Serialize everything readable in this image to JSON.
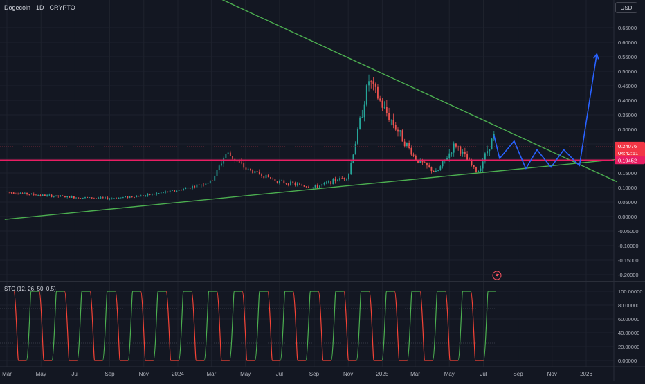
{
  "header": {
    "title": "Dogecoin · 1D · CRYPTO"
  },
  "currency": "USD",
  "colors": {
    "background": "#131722",
    "grid": "#1e222d",
    "up": "#26a69a",
    "down": "#ef5350",
    "trendline": "#4caf50",
    "projection": "#2962ff",
    "support": "#e91e63",
    "stc_up": "#4caf50",
    "stc_down": "#f44336"
  },
  "price_labels": {
    "current_price": "0.24076",
    "countdown": "04:42:51",
    "support_price": "0.19452"
  },
  "indicator": {
    "label": "STC (12, 26, 50, 0.5)"
  },
  "chart_data": [
    {
      "type": "line",
      "title": "Dogecoin · 1D · CRYPTO",
      "xlabel": "",
      "ylabel": "",
      "x_ticks": [
        "Mar",
        "May",
        "Jul",
        "Sep",
        "Nov",
        "2024",
        "Mar",
        "May",
        "Jul",
        "Sep",
        "Nov",
        "2025",
        "Mar",
        "May",
        "Jul",
        "Sep",
        "Nov",
        "2026"
      ],
      "y_ticks": [
        "0.65000",
        "0.60000",
        "0.55000",
        "0.50000",
        "0.45000",
        "0.40000",
        "0.35000",
        "0.30000",
        "0.25000",
        "0.20000",
        "0.15000",
        "0.10000",
        "0.05000",
        "0.00000",
        "-0.05000",
        "-0.10000",
        "-0.15000",
        "-0.20000"
      ],
      "ylim": [
        -0.225,
        0.69
      ],
      "series": [
        {
          "x": [
            "2023-03-01",
            "2023-05-01",
            "2023-07-01",
            "2023-09-01",
            "2023-11-01",
            "2024-01-01",
            "2024-03-01",
            "2024-03-28",
            "2024-05-01",
            "2024-07-01",
            "2024-09-01",
            "2024-11-01",
            "2024-12-08",
            "2025-01-01",
            "2025-03-01",
            "2025-04-08",
            "2025-05-12",
            "2025-06-20",
            "2025-07-20"
          ],
          "values": [
            0.085,
            0.073,
            0.066,
            0.062,
            0.072,
            0.09,
            0.12,
            0.22,
            0.165,
            0.12,
            0.1,
            0.14,
            0.47,
            0.38,
            0.2,
            0.15,
            0.25,
            0.15,
            0.28
          ]
        }
      ],
      "trendlines": {
        "resistance": [
          {
            "x": "2023-07-01",
            "y": 0.98
          },
          {
            "x": "2026-02-25",
            "y": 0.12
          }
        ],
        "support": [
          {
            "x": "2023-02-25",
            "y": -0.01
          },
          {
            "x": "2026-02-25",
            "y": 0.197
          }
        ],
        "horizontal": 0.19452
      },
      "projection": [
        {
          "x": "2025-07-20",
          "y": 0.28
        },
        {
          "x": "2025-07-30",
          "y": 0.2
        },
        {
          "x": "2025-08-25",
          "y": 0.26
        },
        {
          "x": "2025-09-15",
          "y": 0.165
        },
        {
          "x": "2025-10-05",
          "y": 0.23
        },
        {
          "x": "2025-10-30",
          "y": 0.17
        },
        {
          "x": "2025-11-22",
          "y": 0.23
        },
        {
          "x": "2025-12-20",
          "y": 0.175
        },
        {
          "x": "2026-01-20",
          "y": 0.56
        }
      ]
    },
    {
      "type": "line",
      "title": "STC (12, 26, 50, 0.5)",
      "y_ticks": [
        "100.00000",
        "80.00000",
        "60.00000",
        "40.00000",
        "20.00000",
        "0.00000"
      ],
      "ylim": [
        -5,
        110
      ],
      "values": [
        100,
        0,
        100,
        0,
        100,
        0,
        100,
        0,
        100,
        0,
        100,
        0,
        100,
        0,
        100,
        0,
        100,
        0,
        100,
        0,
        100,
        0,
        100,
        0,
        100,
        0,
        100,
        0,
        100,
        0,
        100,
        0,
        100,
        0,
        100,
        0,
        100,
        0,
        100
      ]
    }
  ]
}
